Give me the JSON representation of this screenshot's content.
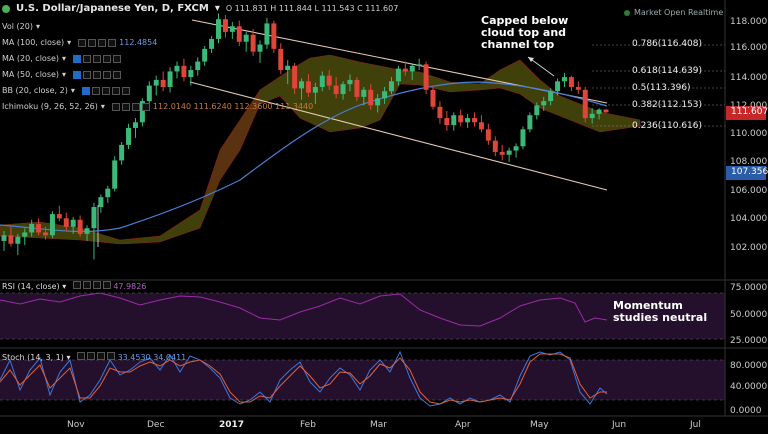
{
  "header": {
    "symbol": "U.S. Dollar/Japanese Yen, D, FXCM",
    "ohlc": "O 111.831  H 111.844  L 111.543  C 111.607",
    "market_status": "Market Open Realtime"
  },
  "indicators": [
    {
      "label": "Vol (20)",
      "value": ""
    },
    {
      "label": "MA (100, close)",
      "value": "112.4854"
    },
    {
      "label": "MA (20, close)",
      "value": ""
    },
    {
      "label": "MA (50, close)",
      "value": ""
    },
    {
      "label": "BB (20, close, 2)",
      "value": ""
    },
    {
      "label": "Ichimoku (9, 26, 52, 26)",
      "value": "112.0140  111.6240  112.3600  111.3440"
    }
  ],
  "price_axis": [
    "118.000",
    "116.000",
    "114.000",
    "112.000",
    "110.000",
    "108.000",
    "106.000",
    "104.000",
    "102.000"
  ],
  "current_price": "111.607",
  "ma_price": "107.356",
  "fib_levels": [
    {
      "label": "0.786(116.408)"
    },
    {
      "label": "0.618(114.639)"
    },
    {
      "label": "0.5(113.396)"
    },
    {
      "label": "0.382(112.153)"
    },
    {
      "label": "0.236(110.616)"
    }
  ],
  "annotations": {
    "capped": [
      "Capped below",
      "cloud top and",
      "channel top"
    ],
    "momentum": [
      "Momentum",
      "studies neutral"
    ]
  },
  "rsi": {
    "label": "RSI (14, close)",
    "value": "47.9826",
    "axis": [
      "75.0000",
      "50.0000",
      "25.0000"
    ]
  },
  "stoch": {
    "label": "Stoch (14, 3, 1)",
    "value": "33.4530  34.0411",
    "axis": [
      "80.0000",
      "40.0000",
      "0.0000"
    ]
  },
  "months": [
    "Nov",
    "Dec",
    "2017",
    "Feb",
    "Mar",
    "Apr",
    "May",
    "Jun",
    "Jul"
  ],
  "colors": {
    "up": "#3cb878",
    "down": "#e0453a",
    "ma100": "#4a7fd6",
    "cloud": "#8a8a1e",
    "pane": "#2a1030"
  },
  "chart_data": {
    "type": "candlestick",
    "ohlc": [
      [
        102.5,
        103.2,
        101.8,
        102.9
      ],
      [
        102.9,
        103.5,
        102.1,
        102.3
      ],
      [
        102.3,
        103,
        101.5,
        102.8
      ],
      [
        102.8,
        103.4,
        102.2,
        103.1
      ],
      [
        103.1,
        104,
        102.8,
        103.7
      ],
      [
        103.7,
        104.1,
        102.9,
        103.1
      ],
      [
        103.1,
        103.5,
        102.6,
        102.9
      ],
      [
        102.9,
        104.6,
        102.7,
        104.4
      ],
      [
        104.4,
        105.0,
        103.9,
        104.1
      ],
      [
        104.1,
        104.5,
        103.2,
        103.5
      ],
      [
        103.5,
        104.2,
        103.0,
        104.0
      ],
      [
        104,
        104.3,
        102.8,
        103.0
      ],
      [
        103,
        103.6,
        102.5,
        103.4
      ],
      [
        103.4,
        105.2,
        101.2,
        104.9
      ],
      [
        104.9,
        105.8,
        104.5,
        105.6
      ],
      [
        105.6,
        106.4,
        105.2,
        106.2
      ],
      [
        106.2,
        108.5,
        106,
        108.2
      ],
      [
        108.2,
        109.5,
        107.9,
        109.3
      ],
      [
        109.3,
        110.8,
        109,
        110.5
      ],
      [
        110.5,
        111.2,
        109.8,
        110.9
      ],
      [
        110.9,
        112.6,
        110.6,
        112.4
      ],
      [
        112.4,
        113.8,
        112,
        113.5
      ],
      [
        113.5,
        114.2,
        112.8,
        113.9
      ],
      [
        113.9,
        114.5,
        113.1,
        113.4
      ],
      [
        113.4,
        114.8,
        113,
        114.5
      ],
      [
        114.5,
        115.2,
        114,
        114.9
      ],
      [
        114.9,
        115.4,
        113.8,
        114.1
      ],
      [
        114.1,
        114.9,
        113.5,
        114.6
      ],
      [
        114.6,
        115.5,
        114.2,
        115.2
      ],
      [
        115.2,
        116.3,
        114.9,
        116.1
      ],
      [
        116.1,
        117,
        115.8,
        116.8
      ],
      [
        116.8,
        118.6,
        116.5,
        118.2
      ],
      [
        118.2,
        118.5,
        116.9,
        117.3
      ],
      [
        117.3,
        118,
        116.8,
        117.7
      ],
      [
        117.7,
        118.1,
        116.3,
        116.6
      ],
      [
        116.6,
        117.3,
        115.9,
        117.1
      ],
      [
        117.1,
        117.5,
        115.6,
        115.9
      ],
      [
        115.9,
        116.7,
        115.1,
        116.4
      ],
      [
        116.4,
        118.3,
        116.1,
        117.9
      ],
      [
        117.9,
        118.1,
        115.8,
        116.1
      ],
      [
        116.1,
        116.5,
        114.3,
        114.6
      ],
      [
        114.6,
        115.3,
        113.6,
        114.9
      ],
      [
        114.9,
        115.1,
        112.9,
        113.3
      ],
      [
        113.3,
        114,
        112.5,
        113.8
      ],
      [
        113.8,
        114.3,
        112.7,
        113.0
      ],
      [
        113.0,
        113.7,
        112.2,
        113.4
      ],
      [
        113.4,
        114.5,
        113.1,
        114.2
      ],
      [
        114.2,
        114.6,
        113.2,
        113.5
      ],
      [
        113.5,
        114.1,
        112.6,
        112.9
      ],
      [
        112.9,
        113.8,
        112.5,
        113.6
      ],
      [
        113.6,
        114.3,
        113.1,
        113.9
      ],
      [
        113.9,
        114.1,
        112.4,
        112.7
      ],
      [
        112.7,
        113.4,
        112.1,
        113.2
      ],
      [
        113.2,
        113.6,
        111.8,
        112.1
      ],
      [
        112.1,
        112.9,
        111.6,
        112.6
      ],
      [
        112.6,
        113.4,
        112.2,
        113.1
      ],
      [
        113.1,
        114.1,
        112.9,
        113.8
      ],
      [
        113.8,
        114.9,
        113.5,
        114.7
      ],
      [
        114.7,
        115.2,
        114.2,
        114.5
      ],
      [
        114.5,
        115.0,
        113.9,
        114.9
      ],
      [
        114.9,
        115.4,
        114.6,
        115.0
      ],
      [
        115.0,
        115.2,
        112.9,
        113.2
      ],
      [
        113.2,
        113.5,
        111.8,
        112.0
      ],
      [
        112.0,
        112.4,
        110.8,
        111.2
      ],
      [
        111.2,
        111.7,
        110.3,
        110.7
      ],
      [
        110.7,
        111.6,
        110.3,
        111.4
      ],
      [
        111.4,
        111.8,
        110.6,
        110.9
      ],
      [
        110.9,
        111.5,
        110.5,
        111.2
      ],
      [
        111.2,
        111.6,
        110.6,
        110.9
      ],
      [
        110.9,
        111.4,
        110.2,
        110.4
      ],
      [
        110.4,
        110.8,
        109.3,
        109.6
      ],
      [
        109.6,
        109.9,
        108.5,
        108.8
      ],
      [
        108.8,
        109.3,
        108.2,
        108.6
      ],
      [
        108.6,
        109.1,
        108.1,
        108.9
      ],
      [
        108.9,
        109.4,
        108.4,
        109.2
      ],
      [
        109.2,
        110.6,
        109,
        110.4
      ],
      [
        110.4,
        111.6,
        110.2,
        111.4
      ],
      [
        111.4,
        112.3,
        111.1,
        112.1
      ],
      [
        112.1,
        112.7,
        111.7,
        112.4
      ],
      [
        112.4,
        113.3,
        112.1,
        113.1
      ],
      [
        113.1,
        114.0,
        112.8,
        113.8
      ],
      [
        113.8,
        114.4,
        113.4,
        114.1
      ],
      [
        114.1,
        114.2,
        113.1,
        113.4
      ],
      [
        113.4,
        113.8,
        112.9,
        113.2
      ],
      [
        113.2,
        113.4,
        110.9,
        111.2
      ],
      [
        111.2,
        111.9,
        110.8,
        111.5
      ],
      [
        111.5,
        111.9,
        111.1,
        111.8
      ],
      [
        111.8,
        111.84,
        111.54,
        111.61
      ]
    ]
  }
}
